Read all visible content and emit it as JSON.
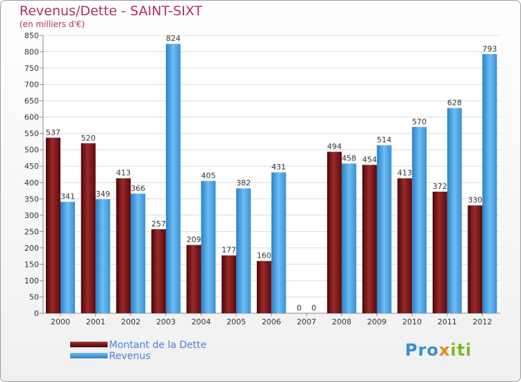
{
  "chart_data": {
    "type": "bar",
    "title": "Revenus/Dette - SAINT-SIXT",
    "subtitle": "(en milliers d'€)",
    "categories": [
      "2000",
      "2001",
      "2002",
      "2003",
      "2004",
      "2005",
      "2006",
      "2007",
      "2008",
      "2009",
      "2010",
      "2011",
      "2012"
    ],
    "series": [
      {
        "name": "Montant de la Dette",
        "color": "#7a1a1a",
        "values": [
          537,
          520,
          413,
          257,
          209,
          177,
          160,
          0,
          494,
          454,
          413,
          372,
          330
        ]
      },
      {
        "name": "Revenus",
        "color": "#4aa0e0",
        "values": [
          341,
          349,
          366,
          824,
          405,
          382,
          431,
          0,
          458,
          514,
          570,
          628,
          793
        ]
      }
    ],
    "ylim": [
      0,
      850
    ],
    "yticks": [
      0,
      50,
      100,
      150,
      200,
      250,
      300,
      350,
      400,
      450,
      500,
      550,
      600,
      650,
      700,
      750,
      800,
      850
    ],
    "grid": true,
    "legend": "bottom-left"
  },
  "logo": {
    "p1": "Pro",
    "p2": "x",
    "p3": "iti"
  }
}
